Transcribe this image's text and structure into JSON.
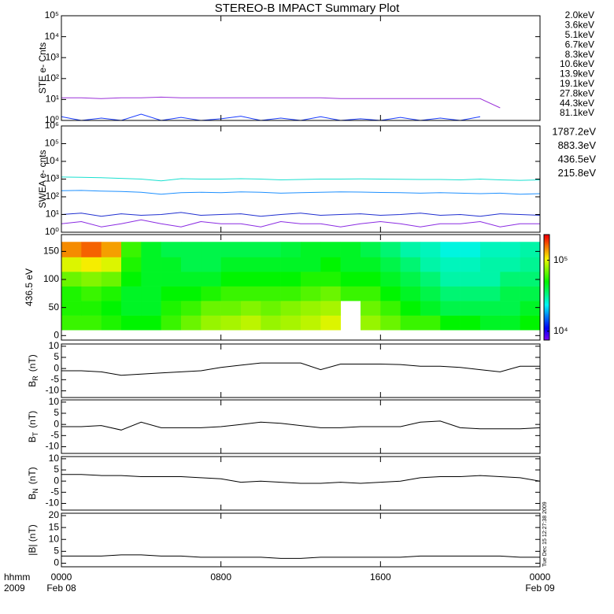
{
  "title": "STEREO-B IMPACT Summary Plot",
  "timestamp": "Tue Dec 15 12:27:38 2009",
  "x_axis": {
    "xlim": [
      0,
      24
    ],
    "xticks": [
      {
        "value": 0,
        "label": "0000"
      },
      {
        "value": 8,
        "label": "0800"
      },
      {
        "value": 16,
        "label": "1600"
      },
      {
        "value": 24,
        "label": "0000"
      }
    ],
    "xtick_dates": [
      "Feb 08",
      null,
      null,
      "Feb 09"
    ],
    "unit_label": "hhmm",
    "year_label": "2009"
  },
  "chart_data": [
    {
      "type": "line",
      "ylabel": "STE e- Cnts",
      "log_y": true,
      "ylim": [
        1,
        100000
      ],
      "yticks": [
        {
          "value": 1,
          "label": "10⁰"
        },
        {
          "value": 10,
          "label": "10¹"
        },
        {
          "value": 100,
          "label": "10²"
        },
        {
          "value": 1000,
          "label": "10³"
        },
        {
          "value": 10000,
          "label": "10⁴"
        },
        {
          "value": 100000,
          "label": "10⁵"
        }
      ],
      "x": [
        0,
        1,
        2,
        3,
        4,
        5,
        6,
        7,
        8,
        9,
        10,
        11,
        12,
        13,
        14,
        15,
        16,
        17,
        18,
        19,
        20,
        21,
        22,
        23,
        24
      ],
      "series": [
        {
          "name": "2.0keV",
          "color": "#9b30d9",
          "values": [
            12,
            12,
            11,
            12,
            12,
            13,
            12,
            12,
            12,
            12,
            12,
            12,
            12,
            12,
            11,
            11,
            11,
            11,
            11,
            11,
            11,
            11,
            4,
            null,
            null
          ]
        },
        {
          "name": "3.6keV",
          "color": "#5a2ac8",
          "values": [
            null,
            null,
            null,
            null,
            null,
            null,
            null,
            null,
            null,
            null,
            null,
            null,
            null,
            null,
            null,
            null,
            null,
            null,
            null,
            null,
            null,
            null,
            null,
            null,
            null
          ]
        },
        {
          "name": "5.1keV",
          "color": "#1a3cff",
          "values": [
            1.5,
            1,
            1.3,
            1,
            2,
            1,
            1.4,
            1,
            1.2,
            1.6,
            1,
            1.3,
            1,
            1.5,
            1,
            1.2,
            1,
            1.4,
            1,
            1.3,
            1,
            1.5,
            null,
            null,
            null
          ]
        },
        {
          "name": "6.7keV",
          "color": "#19a8e8",
          "values": [
            null,
            null,
            null,
            null,
            null,
            null,
            null,
            null,
            null,
            null,
            null,
            null,
            null,
            null,
            null,
            null,
            null,
            null,
            null,
            null,
            null,
            null,
            null,
            null,
            null
          ]
        },
        {
          "name": "8.3keV",
          "color": "#1ad6c8",
          "values": [
            null,
            null,
            null,
            null,
            null,
            null,
            null,
            null,
            null,
            null,
            null,
            null,
            null,
            null,
            null,
            null,
            null,
            null,
            null,
            null,
            null,
            null,
            null,
            null,
            null
          ]
        },
        {
          "name": "10.6keV",
          "color": "#19d27a",
          "values": [
            null,
            null,
            null,
            null,
            null,
            null,
            null,
            null,
            null,
            null,
            null,
            null,
            null,
            null,
            null,
            null,
            null,
            null,
            null,
            null,
            null,
            null,
            null,
            null,
            null
          ]
        },
        {
          "name": "13.9keV",
          "color": "#19cc19",
          "values": [
            null,
            null,
            null,
            null,
            null,
            null,
            null,
            null,
            null,
            null,
            null,
            null,
            null,
            null,
            null,
            null,
            null,
            null,
            null,
            null,
            null,
            null,
            null,
            null,
            null
          ]
        },
        {
          "name": "19.1keV",
          "color": "#a8d21a",
          "values": [
            null,
            null,
            null,
            null,
            null,
            null,
            null,
            null,
            null,
            null,
            null,
            null,
            null,
            null,
            null,
            null,
            null,
            null,
            null,
            null,
            null,
            null,
            null,
            null,
            null
          ]
        },
        {
          "name": "27.8keV",
          "color": "#e8c01a",
          "values": [
            null,
            null,
            null,
            null,
            null,
            null,
            null,
            null,
            null,
            null,
            null,
            null,
            null,
            null,
            null,
            null,
            null,
            null,
            null,
            null,
            null,
            null,
            null,
            null,
            null
          ]
        },
        {
          "name": "44.3keV",
          "color": "#f09018",
          "values": [
            null,
            null,
            null,
            null,
            null,
            null,
            null,
            null,
            null,
            null,
            null,
            null,
            null,
            null,
            null,
            null,
            null,
            null,
            null,
            null,
            null,
            null,
            null,
            null,
            null
          ]
        },
        {
          "name": "81.1keV",
          "color": "#e03c10",
          "values": [
            null,
            null,
            null,
            null,
            null,
            null,
            null,
            null,
            null,
            null,
            null,
            null,
            null,
            null,
            null,
            null,
            null,
            null,
            null,
            null,
            null,
            null,
            null,
            null,
            null
          ]
        }
      ]
    },
    {
      "type": "line",
      "ylabel": "SWEA e- cnts",
      "log_y": true,
      "ylim": [
        1,
        1000000
      ],
      "yticks": [
        {
          "value": 1,
          "label": "10⁰"
        },
        {
          "value": 10,
          "label": "10¹"
        },
        {
          "value": 100,
          "label": "10²"
        },
        {
          "value": 1000,
          "label": "10³"
        },
        {
          "value": 10000,
          "label": "10⁴"
        },
        {
          "value": 100000,
          "label": "10⁵"
        },
        {
          "value": 1000000,
          "label": "10⁶"
        }
      ],
      "x": [
        0,
        1,
        2,
        3,
        4,
        5,
        6,
        7,
        8,
        9,
        10,
        11,
        12,
        13,
        14,
        15,
        16,
        17,
        18,
        19,
        20,
        21,
        22,
        23,
        24
      ],
      "series": [
        {
          "name": "1787.2eV",
          "color": "#8a2be2",
          "values": [
            3,
            4,
            2,
            3,
            5,
            3,
            2,
            4,
            3,
            3,
            2,
            4,
            3,
            3,
            2,
            3,
            4,
            3,
            2,
            3,
            3,
            4,
            2,
            3,
            3
          ]
        },
        {
          "name": "883.3eV",
          "color": "#1f2fd0",
          "values": [
            10,
            12,
            8,
            11,
            9,
            10,
            13,
            9,
            10,
            11,
            8,
            10,
            12,
            9,
            10,
            11,
            9,
            10,
            12,
            9,
            10,
            8,
            11,
            10,
            9
          ]
        },
        {
          "name": "436.5eV",
          "color": "#1e90ff",
          "values": [
            220,
            230,
            210,
            200,
            180,
            140,
            170,
            180,
            170,
            190,
            180,
            160,
            170,
            180,
            190,
            185,
            175,
            170,
            160,
            170,
            160,
            150,
            160,
            140,
            150
          ]
        },
        {
          "name": "215.8eV",
          "color": "#19e0d0",
          "values": [
            1300,
            1250,
            1200,
            1100,
            1000,
            800,
            1050,
            1000,
            1000,
            1050,
            1000,
            900,
            950,
            1000,
            1000,
            1020,
            1000,
            980,
            950,
            950,
            900,
            1000,
            900,
            850,
            900
          ]
        }
      ]
    },
    {
      "type": "heatmap",
      "ylabel": "436.5 eV",
      "ylim": [
        -8,
        180
      ],
      "yticks": [
        0,
        50,
        100,
        150
      ],
      "x_edges": [
        0,
        1,
        2,
        3,
        4,
        5,
        6,
        7,
        8,
        9,
        10,
        11,
        12,
        13,
        14,
        15,
        16,
        17,
        18,
        19,
        20,
        21,
        22,
        23,
        24
      ],
      "y_edges": [
        10,
        36,
        62,
        88,
        114,
        140,
        167
      ],
      "values": [
        [
          60000,
          60000,
          55000,
          50000,
          50000,
          60000,
          70000,
          80000,
          85000,
          90000,
          80000,
          85000,
          90000,
          100000,
          null,
          80000,
          70000,
          60000,
          60000,
          50000,
          50000,
          45000,
          45000,
          50000
        ],
        [
          55000,
          55000,
          50000,
          45000,
          45000,
          55000,
          60000,
          70000,
          70000,
          75000,
          70000,
          75000,
          80000,
          85000,
          null,
          70000,
          60000,
          50000,
          45000,
          40000,
          40000,
          40000,
          40000,
          45000
        ],
        [
          55000,
          60000,
          55000,
          45000,
          45000,
          50000,
          50000,
          55000,
          60000,
          60000,
          60000,
          60000,
          65000,
          70000,
          60000,
          60000,
          50000,
          45000,
          40000,
          35000,
          35000,
          35000,
          40000,
          40000
        ],
        [
          70000,
          75000,
          70000,
          50000,
          45000,
          45000,
          45000,
          45000,
          50000,
          50000,
          50000,
          50000,
          55000,
          55000,
          50000,
          50000,
          45000,
          40000,
          35000,
          30000,
          30000,
          30000,
          35000,
          35000
        ],
        [
          100000,
          110000,
          100000,
          55000,
          45000,
          45000,
          40000,
          40000,
          45000,
          45000,
          45000,
          45000,
          45000,
          50000,
          45000,
          45000,
          40000,
          35000,
          30000,
          28000,
          28000,
          30000,
          30000,
          32000
        ],
        [
          150000,
          170000,
          140000,
          60000,
          45000,
          40000,
          40000,
          40000,
          40000,
          40000,
          40000,
          42000,
          45000,
          45000,
          45000,
          40000,
          35000,
          30000,
          28000,
          25000,
          25000,
          28000,
          28000,
          30000
        ]
      ],
      "clim": [
        7500,
        230000
      ],
      "log_color": true,
      "cticks": [
        {
          "value": 10000,
          "label": "10⁴"
        },
        {
          "value": 100000,
          "label": "10⁵"
        }
      ]
    },
    {
      "type": "line",
      "ylabel": "B",
      "ylabel_sub": "R",
      "ylabel_unit": "(nT)",
      "ylim": [
        -13,
        11
      ],
      "yticks": [
        -10,
        -5,
        0,
        5,
        10
      ],
      "x": [
        0,
        1,
        2,
        3,
        4,
        5,
        6,
        7,
        8,
        9,
        10,
        11,
        12,
        13,
        14,
        15,
        16,
        17,
        18,
        19,
        20,
        21,
        22,
        23,
        24
      ],
      "series": [
        {
          "color": "#000000",
          "values": [
            -1,
            -1,
            -1.5,
            -3,
            -2.5,
            -2,
            -1.5,
            -1,
            0.5,
            1.5,
            2.5,
            2.5,
            2.5,
            -0.5,
            2,
            2,
            2,
            1.8,
            1,
            1,
            0.5,
            -0.5,
            -1.5,
            1,
            1
          ]
        }
      ]
    },
    {
      "type": "line",
      "ylabel": "B",
      "ylabel_sub": "T",
      "ylabel_unit": "(nT)",
      "ylim": [
        -13,
        11
      ],
      "yticks": [
        -10,
        -5,
        0,
        5,
        10
      ],
      "x": [
        0,
        1,
        2,
        3,
        4,
        5,
        6,
        7,
        8,
        9,
        10,
        11,
        12,
        13,
        14,
        15,
        16,
        17,
        18,
        19,
        20,
        21,
        22,
        23,
        24
      ],
      "series": [
        {
          "color": "#000000",
          "values": [
            -1,
            -1,
            -0.5,
            -2.5,
            1,
            -1.5,
            -1.5,
            -1.5,
            -1,
            0,
            1,
            0.5,
            -0.5,
            -1.5,
            -1.5,
            -1,
            -1,
            -1,
            1,
            1.5,
            -1.5,
            -2,
            -2,
            -2,
            -1.5
          ]
        }
      ]
    },
    {
      "type": "line",
      "ylabel": "B",
      "ylabel_sub": "N",
      "ylabel_unit": "(nT)",
      "ylim": [
        -13,
        11
      ],
      "yticks": [
        -10,
        -5,
        0,
        5,
        10
      ],
      "x": [
        0,
        1,
        2,
        3,
        4,
        5,
        6,
        7,
        8,
        9,
        10,
        11,
        12,
        13,
        14,
        15,
        16,
        17,
        18,
        19,
        20,
        21,
        22,
        23,
        24
      ],
      "series": [
        {
          "color": "#000000",
          "values": [
            3,
            3,
            2.5,
            2.5,
            2,
            2,
            2,
            1.5,
            1,
            -0.5,
            0,
            -0.5,
            -1,
            -1,
            -0.5,
            -1,
            -0.5,
            0,
            1.5,
            2,
            2,
            2.5,
            2,
            1.5,
            0
          ]
        }
      ]
    },
    {
      "type": "line",
      "ylabel": "|B| (nT)",
      "ylim": [
        -1.5,
        21
      ],
      "yticks": [
        0,
        5,
        10,
        15,
        20
      ],
      "x": [
        0,
        1,
        2,
        3,
        4,
        5,
        6,
        7,
        8,
        9,
        10,
        11,
        12,
        13,
        14,
        15,
        16,
        17,
        18,
        19,
        20,
        21,
        22,
        23,
        24
      ],
      "series": [
        {
          "color": "#000000",
          "values": [
            3,
            3,
            3,
            3.5,
            3.5,
            3,
            3,
            2.5,
            2.5,
            2.5,
            2.5,
            2,
            2,
            2.5,
            2.5,
            2.5,
            2.5,
            2.5,
            3,
            3,
            3,
            3,
            3,
            2.5,
            2.5
          ]
        }
      ]
    }
  ]
}
